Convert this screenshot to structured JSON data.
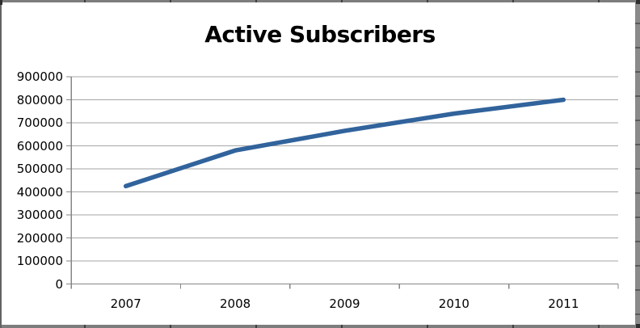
{
  "window": {
    "background": "#ffffff",
    "border_color": "#7d7d7d"
  },
  "chart_data": {
    "type": "line",
    "title": "Active Subscribers",
    "categories": [
      "2007",
      "2008",
      "2009",
      "2010",
      "2011"
    ],
    "series": [
      {
        "name": "Active Subscribers",
        "values": [
          425000,
          580000,
          665000,
          740000,
          800000
        ]
      }
    ],
    "xlabel": "",
    "ylabel": "",
    "ylim": [
      0,
      900000
    ],
    "ytick_step": 100000,
    "ytick_labels": [
      "900000",
      "800000",
      "700000",
      "600000",
      "500000",
      "400000",
      "300000",
      "200000",
      "100000",
      "0"
    ],
    "grid": "horizontal",
    "legend_position": "none",
    "colors": {
      "line": "#31639C",
      "gridline": "#A6A6A6",
      "axis": "#868686",
      "text": "#000000"
    }
  }
}
